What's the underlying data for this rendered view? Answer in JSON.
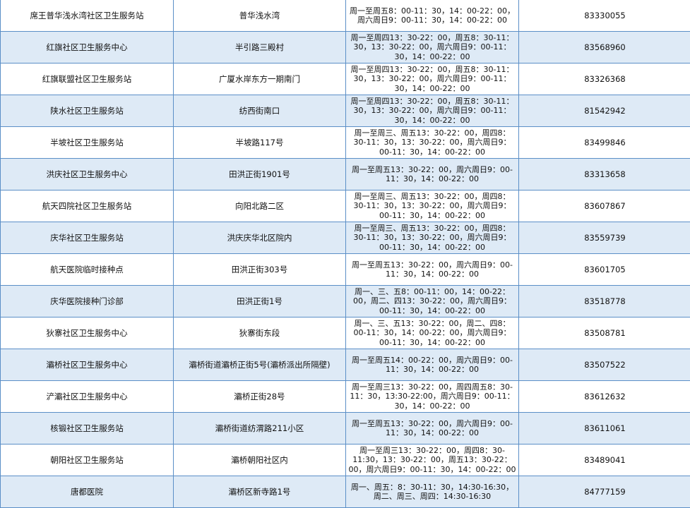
{
  "colors": {
    "border": "#5b8fc7",
    "row_alt": "#deeaf6"
  },
  "rows": [
    {
      "name": "席王普华浅水湾社区卫生服务站",
      "address": "普华浅水湾",
      "hours": "周一至周五8：00-11：30，14：00-22：00，周六周日9：00-11：30，14：00-22：00",
      "phone": "83330055"
    },
    {
      "name": "红旗社区卫生服务中心",
      "address": "半引路三殿村",
      "hours": "周一至周四13：30-22：00，周五8：30-11：30，13：30-22：00，周六周日9：00-11：30，14：00-22：00",
      "phone": "83568960"
    },
    {
      "name": "红旗联盟社区卫生服务站",
      "address": "广厦水岸东方一期南门",
      "hours": "周一至周四13：30-22：00，周五8：30-11：30，13：30-22：00，周六周日9：00-11：30，14：00-22：00",
      "phone": "83326368"
    },
    {
      "name": "陕水社区卫生服务站",
      "address": "纺西街南口",
      "hours": "周一至周四13：30-22：00，周五8：30-11：30，13：30-22：00，周六周日9：00-11：30，14：00-22：00",
      "phone": "81542942"
    },
    {
      "name": "半坡社区卫生服务站",
      "address": "半坡路117号",
      "hours": "周一至周三、周五13：30-22：00，周四8：30-11：30，13：30-22：00，周六周日9：00-11：30，14：00-22：00",
      "phone": "83499846"
    },
    {
      "name": "洪庆社区卫生服务中心",
      "address": "田洪正街1901号",
      "hours": "周一至周五13：30-22：00，周六周日9：00-11：30，14：00-22：00",
      "phone": "83313658"
    },
    {
      "name": "航天四院社区卫生服务站",
      "address": "向阳北路二区",
      "hours": "周一至周三、周五13：30-22：00，周四8：30-11：30，13：30-22：00，周六周日9：00-11：30，14：00-22：00",
      "phone": "83607867"
    },
    {
      "name": "庆华社区卫生服务站",
      "address": "洪庆庆华北区院内",
      "hours": "周一至周三、周五13：30-22：00，周四8：30-11：30，13：30-22：00，周六周日9：00-11：30，14：00-22：00",
      "phone": "83559739"
    },
    {
      "name": "航天医院临时接种点",
      "address": "田洪正街303号",
      "hours": "周一至周五13：30-22：00，周六周日9：00-11：30，14：00-22：00",
      "phone": "83601705"
    },
    {
      "name": "庆华医院接种门诊部",
      "address": "田洪正街1号",
      "hours": "周一、三、五8：00-11：00，14：00-22：00，周二、四13：30-22：00，周六周日9：00-11：30，14：00-22：00",
      "phone": "83518778"
    },
    {
      "name": "狄寨社区卫生服务中心",
      "address": "狄寨街东段",
      "hours": "周一、三、五13：30-22：00，周二、四8：00-11：30，14：00-22：00，周六周日9：00-11：30，14：00-22：00",
      "phone": "83508781"
    },
    {
      "name": "灞桥社区卫生服务中心",
      "address": "灞桥街道灞桥正街5号(灞桥派出所隔壁)",
      "hours": "周一至周五14：00-22：00，周六周日9：00-11：30，14：00-22：00",
      "phone": "83507522"
    },
    {
      "name": "浐灞社区卫生服务中心",
      "address": "灞桥正街28号",
      "hours": "周一至周三13：30-22：00，周四周五8：30-11：30，13:30-22:00，周六周日9：00-11：30，14：00-22：00",
      "phone": "83612632"
    },
    {
      "name": "核锻社区卫生服务站",
      "address": "灞桥街道纺渭路211小区",
      "hours": "周一至周五13：30-22：00，周六周日9：00-11：30，14：00-22：00",
      "phone": "83611061"
    },
    {
      "name": "朝阳社区卫生服务站",
      "address": "灞桥朝阳社区内",
      "hours": "周一至周三13：30-22：00，周四8：30-11:30，13：30-22：00，周五13：30-22：00，周六周日9：00-11：30，14：00-22：00",
      "phone": "83489041"
    },
    {
      "name": "唐都医院",
      "address": "灞桥区新寺路1号",
      "hours": "周一、周五：8：30-11：30，14:30-16:30，周二、周三、周四：14:30-16:30",
      "phone": "84777159"
    }
  ]
}
